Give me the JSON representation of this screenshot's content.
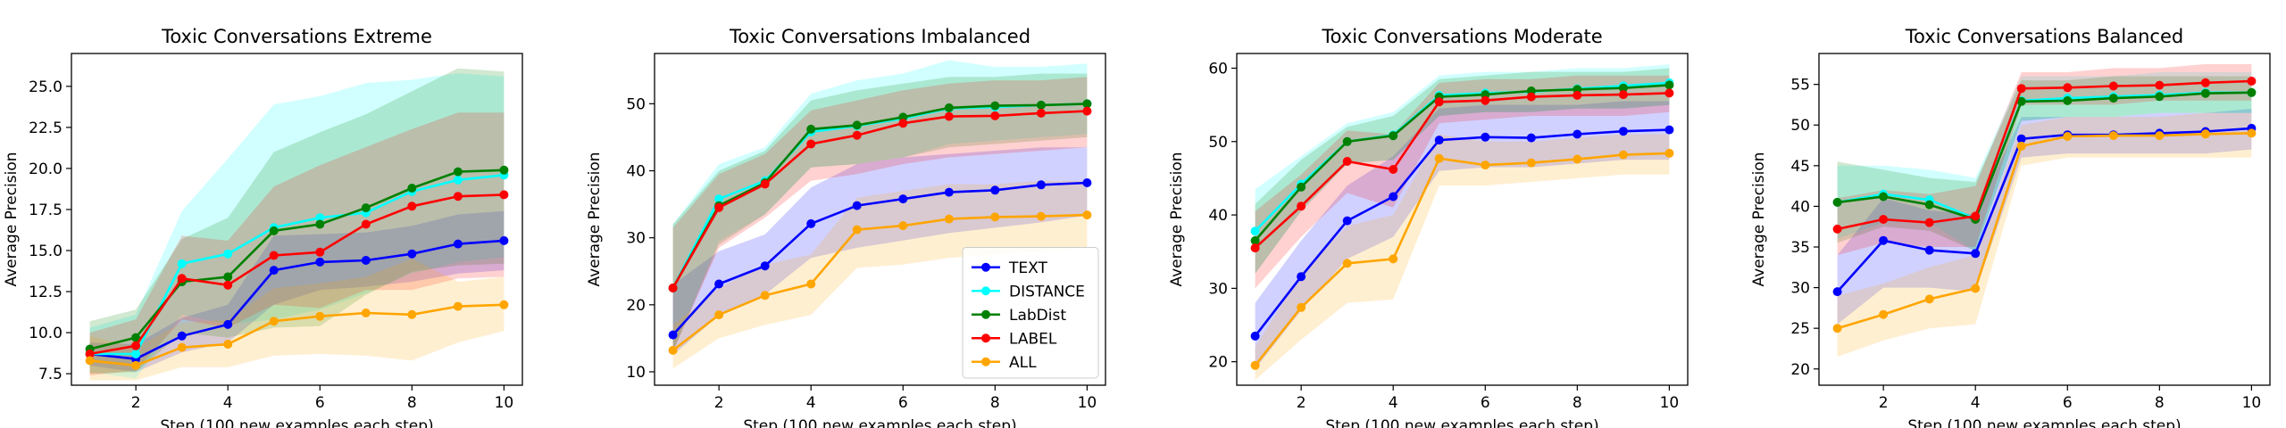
{
  "chart_data": [
    {
      "type": "line",
      "title": "Toxic Conversations Extreme",
      "xlabel": "Step (100 new examples each step)",
      "ylabel": "Average Precision",
      "xlim": [
        0.6,
        10.4
      ],
      "ylim": [
        6.8,
        27.0
      ],
      "xticks": [
        2,
        4,
        6,
        8,
        10
      ],
      "yticks": [
        7.5,
        10.0,
        12.5,
        15.0,
        17.5,
        20.0,
        22.5,
        25.0
      ],
      "ytick_labels": [
        "7.5",
        "10.0",
        "12.5",
        "15.0",
        "17.5",
        "20.0",
        "22.5",
        "25.0"
      ],
      "x": [
        1,
        2,
        3,
        4,
        5,
        6,
        7,
        8,
        9,
        10
      ],
      "series": [
        {
          "name": "TEXT",
          "color": "#0000ff",
          "values": [
            8.7,
            8.4,
            9.8,
            10.5,
            13.8,
            14.3,
            14.4,
            14.8,
            15.4,
            15.6
          ],
          "lower": [
            8.0,
            7.6,
            8.8,
            9.4,
            11.7,
            12.6,
            12.8,
            13.1,
            13.6,
            13.8
          ],
          "upper": [
            9.4,
            9.3,
            10.9,
            11.7,
            15.9,
            16.0,
            16.1,
            16.5,
            17.2,
            17.4
          ]
        },
        {
          "name": "DISTANCE",
          "color": "#00ffff",
          "values": [
            8.7,
            8.7,
            14.2,
            14.8,
            16.4,
            17.0,
            17.3,
            18.6,
            19.3,
            19.6
          ],
          "lower": [
            7.6,
            7.2,
            11.1,
            10.5,
            10.8,
            11.4,
            12.4,
            13.6,
            14.3,
            14.6
          ],
          "upper": [
            10.3,
            11.1,
            17.4,
            20.6,
            23.9,
            24.4,
            25.2,
            25.4,
            25.8,
            25.6
          ]
        },
        {
          "name": "LabDist",
          "color": "#008000",
          "values": [
            9.0,
            9.7,
            13.1,
            13.4,
            16.2,
            16.6,
            17.6,
            18.8,
            19.8,
            19.9
          ],
          "lower": [
            7.5,
            7.6,
            10.0,
            9.7,
            10.3,
            10.4,
            12.3,
            13.7,
            14.1,
            14.2
          ],
          "upper": [
            10.7,
            11.4,
            15.7,
            17.0,
            21.0,
            22.2,
            23.3,
            24.7,
            26.1,
            25.9
          ]
        },
        {
          "name": "LABEL",
          "color": "#ff0000",
          "values": [
            8.7,
            9.2,
            13.3,
            12.9,
            14.7,
            14.9,
            16.6,
            17.7,
            18.3,
            18.4
          ],
          "lower": [
            7.4,
            7.7,
            10.8,
            10.3,
            11.7,
            11.5,
            12.6,
            12.6,
            13.3,
            13.4
          ],
          "upper": [
            10.0,
            10.8,
            15.9,
            15.6,
            18.9,
            20.2,
            21.3,
            22.4,
            23.4,
            23.4
          ]
        },
        {
          "name": "ALL",
          "color": "#ffa500",
          "values": [
            8.3,
            8.0,
            9.1,
            9.3,
            10.7,
            11.0,
            11.2,
            11.1,
            11.6,
            11.7
          ],
          "lower": [
            7.1,
            7.1,
            7.9,
            7.9,
            8.6,
            8.7,
            8.6,
            8.3,
            9.4,
            10.1
          ],
          "upper": [
            9.8,
            9.1,
            10.6,
            10.8,
            12.7,
            13.0,
            13.4,
            14.5,
            13.1,
            13.4
          ]
        }
      ]
    },
    {
      "type": "line",
      "title": "Toxic Conversations Imbalanced",
      "xlabel": "Step (100 new examples each step)",
      "ylabel": "Average Precision",
      "xlim": [
        0.6,
        10.4
      ],
      "ylim": [
        8.0,
        57.5
      ],
      "xticks": [
        2,
        4,
        6,
        8,
        10
      ],
      "yticks": [
        10,
        20,
        30,
        40,
        50
      ],
      "ytick_labels": [
        "10",
        "20",
        "30",
        "40",
        "50"
      ],
      "x": [
        1,
        2,
        3,
        4,
        5,
        6,
        7,
        8,
        9,
        10
      ],
      "legend": "lower-right",
      "series": [
        {
          "name": "TEXT",
          "color": "#0000ff",
          "values": [
            15.5,
            23.1,
            25.8,
            32.1,
            34.8,
            35.8,
            36.8,
            37.1,
            37.9,
            38.2
          ],
          "lower": [
            12.5,
            18.4,
            21.5,
            27.0,
            28.5,
            29.6,
            30.7,
            31.5,
            32.3,
            33.3
          ],
          "upper": [
            23.0,
            28.0,
            30.5,
            37.5,
            41.0,
            42.0,
            42.5,
            43.0,
            43.5,
            43.5
          ]
        },
        {
          "name": "DISTANCE",
          "color": "#00ffff",
          "values": [
            22.5,
            35.8,
            38.5,
            45.8,
            46.7,
            47.8,
            49.3,
            49.5,
            49.8,
            50.0
          ],
          "lower": [
            13.0,
            29.5,
            33.5,
            40.5,
            41.0,
            42.0,
            44.0,
            44.5,
            45.0,
            45.5
          ],
          "upper": [
            32.0,
            41.0,
            43.5,
            51.5,
            53.5,
            54.5,
            56.5,
            55.5,
            55.5,
            56.0
          ]
        },
        {
          "name": "LabDist",
          "color": "#008000",
          "values": [
            22.5,
            34.8,
            38.2,
            46.2,
            46.8,
            48.0,
            49.4,
            49.7,
            49.8,
            50.0
          ],
          "lower": [
            13.0,
            29.0,
            33.5,
            40.5,
            41.0,
            42.0,
            43.5,
            44.0,
            44.5,
            45.0
          ],
          "upper": [
            32.0,
            40.0,
            43.0,
            50.5,
            52.0,
            53.0,
            54.0,
            54.0,
            54.5,
            54.5
          ]
        },
        {
          "name": "LABEL",
          "color": "#ff0000",
          "values": [
            22.5,
            34.5,
            38.0,
            44.0,
            45.3,
            47.1,
            48.1,
            48.2,
            48.6,
            48.9
          ],
          "lower": [
            13.0,
            28.5,
            33.0,
            38.5,
            39.5,
            41.0,
            42.0,
            42.5,
            43.0,
            43.5
          ],
          "upper": [
            31.5,
            39.5,
            42.5,
            49.0,
            50.5,
            52.0,
            53.0,
            53.5,
            53.5,
            54.0
          ]
        },
        {
          "name": "ALL",
          "color": "#ffa500",
          "values": [
            13.2,
            18.5,
            21.4,
            23.1,
            31.2,
            31.8,
            32.8,
            33.1,
            33.2,
            33.4
          ],
          "lower": [
            10.5,
            15.0,
            17.0,
            18.5,
            25.5,
            26.0,
            27.0,
            27.5,
            28.0,
            28.5
          ],
          "upper": [
            17.0,
            22.5,
            26.0,
            27.5,
            36.0,
            37.0,
            38.0,
            38.0,
            38.5,
            38.5
          ]
        }
      ]
    },
    {
      "type": "line",
      "title": "Toxic Conversations Moderate",
      "xlabel": "Step (100 new examples each step)",
      "ylabel": "Average Precision",
      "xlim": [
        0.6,
        10.4
      ],
      "ylim": [
        16.8,
        62.0
      ],
      "xticks": [
        2,
        4,
        6,
        8,
        10
      ],
      "yticks": [
        20,
        30,
        40,
        50,
        60
      ],
      "ytick_labels": [
        "20",
        "30",
        "40",
        "50",
        "60"
      ],
      "x": [
        1,
        2,
        3,
        4,
        5,
        6,
        7,
        8,
        9,
        10
      ],
      "series": [
        {
          "name": "TEXT",
          "color": "#0000ff",
          "values": [
            23.5,
            31.6,
            39.2,
            42.5,
            50.2,
            50.6,
            50.5,
            51.0,
            51.4,
            51.6
          ],
          "lower": [
            19.0,
            27.0,
            34.0,
            37.0,
            46.0,
            46.5,
            46.5,
            47.0,
            47.5,
            47.5
          ],
          "upper": [
            28.0,
            36.5,
            44.0,
            48.0,
            54.5,
            55.0,
            55.0,
            55.0,
            55.5,
            55.5
          ]
        },
        {
          "name": "DISTANCE",
          "color": "#00ffff",
          "values": [
            37.8,
            44.2,
            50.0,
            50.9,
            56.3,
            56.6,
            56.8,
            57.2,
            57.6,
            58.0
          ],
          "lower": [
            32.0,
            40.5,
            47.0,
            47.5,
            53.5,
            54.0,
            54.0,
            54.5,
            54.5,
            55.0
          ],
          "upper": [
            43.5,
            48.0,
            52.5,
            54.0,
            59.0,
            59.5,
            59.5,
            60.0,
            60.0,
            60.5
          ]
        },
        {
          "name": "LabDist",
          "color": "#008000",
          "values": [
            36.5,
            43.8,
            50.0,
            50.8,
            56.1,
            56.4,
            56.9,
            57.1,
            57.3,
            57.7
          ],
          "lower": [
            32.0,
            40.5,
            47.0,
            47.5,
            53.5,
            54.0,
            54.0,
            54.5,
            54.5,
            55.0
          ],
          "upper": [
            41.5,
            47.5,
            52.0,
            53.5,
            58.5,
            59.0,
            59.5,
            59.5,
            59.5,
            60.0
          ]
        },
        {
          "name": "LABEL",
          "color": "#ff0000",
          "values": [
            35.5,
            41.2,
            47.3,
            46.2,
            55.4,
            55.6,
            56.1,
            56.3,
            56.4,
            56.6
          ],
          "lower": [
            30.0,
            37.0,
            43.0,
            41.0,
            52.5,
            53.0,
            53.5,
            53.5,
            53.5,
            54.0
          ],
          "upper": [
            40.5,
            45.5,
            51.5,
            51.0,
            58.0,
            58.5,
            58.5,
            59.0,
            59.0,
            59.0
          ]
        },
        {
          "name": "ALL",
          "color": "#ffa500",
          "values": [
            19.5,
            27.4,
            33.4,
            34.0,
            47.7,
            46.8,
            47.1,
            47.6,
            48.2,
            48.4
          ],
          "lower": [
            17.5,
            23.0,
            28.0,
            28.5,
            44.0,
            44.0,
            44.5,
            45.0,
            45.5,
            45.5
          ],
          "upper": [
            22.0,
            32.0,
            38.5,
            40.0,
            51.0,
            50.0,
            50.0,
            50.5,
            51.0,
            51.0
          ]
        }
      ]
    },
    {
      "type": "line",
      "title": "Toxic Conversations Balanced",
      "xlabel": "Step (100 new examples each step)",
      "ylabel": "Average Precision",
      "xlim": [
        0.6,
        10.4
      ],
      "ylim": [
        18.0,
        58.8
      ],
      "xticks": [
        2,
        4,
        6,
        8,
        10
      ],
      "yticks": [
        20,
        25,
        30,
        35,
        40,
        45,
        50,
        55
      ],
      "ytick_labels": [
        "20",
        "25",
        "30",
        "35",
        "40",
        "45",
        "50",
        "55"
      ],
      "x": [
        1,
        2,
        3,
        4,
        5,
        6,
        7,
        8,
        9,
        10
      ],
      "series": [
        {
          "name": "TEXT",
          "color": "#0000ff",
          "values": [
            29.5,
            35.8,
            34.6,
            34.2,
            48.3,
            48.8,
            48.8,
            49.0,
            49.2,
            49.6
          ],
          "lower": [
            25.5,
            30.0,
            30.0,
            29.5,
            46.0,
            46.5,
            46.5,
            46.5,
            46.5,
            47.0
          ],
          "upper": [
            34.0,
            41.0,
            39.5,
            39.0,
            51.0,
            51.0,
            51.0,
            51.5,
            51.5,
            52.0
          ]
        },
        {
          "name": "DISTANCE",
          "color": "#00ffff",
          "values": [
            40.5,
            41.5,
            40.8,
            38.5,
            53.0,
            53.3,
            53.5,
            53.7,
            54.0,
            54.0
          ],
          "lower": [
            36.0,
            38.0,
            38.0,
            34.5,
            50.5,
            51.0,
            51.0,
            51.5,
            51.5,
            51.5
          ],
          "upper": [
            45.0,
            45.0,
            44.5,
            43.5,
            56.0,
            56.0,
            56.0,
            56.5,
            56.5,
            56.5
          ]
        },
        {
          "name": "LabDist",
          "color": "#008000",
          "values": [
            40.5,
            41.2,
            40.2,
            38.4,
            52.9,
            53.0,
            53.3,
            53.5,
            53.9,
            54.0
          ],
          "lower": [
            35.5,
            37.5,
            37.0,
            34.5,
            50.5,
            51.0,
            51.0,
            51.5,
            51.5,
            51.5
          ],
          "upper": [
            45.5,
            44.5,
            43.5,
            43.0,
            55.5,
            55.5,
            56.0,
            56.0,
            56.0,
            56.0
          ]
        },
        {
          "name": "LABEL",
          "color": "#ff0000",
          "values": [
            37.2,
            38.4,
            38.0,
            38.8,
            54.5,
            54.6,
            54.8,
            54.9,
            55.2,
            55.4
          ],
          "lower": [
            34.0,
            35.5,
            35.0,
            35.0,
            52.5,
            52.5,
            52.5,
            53.0,
            53.0,
            53.0
          ],
          "upper": [
            41.0,
            42.0,
            41.5,
            42.5,
            56.5,
            56.5,
            57.0,
            57.0,
            57.5,
            57.5
          ]
        },
        {
          "name": "ALL",
          "color": "#ffa500",
          "values": [
            25.0,
            26.7,
            28.6,
            29.9,
            47.4,
            48.6,
            48.7,
            48.7,
            48.9,
            49.0
          ],
          "lower": [
            21.5,
            23.5,
            25.0,
            25.5,
            45.0,
            46.0,
            46.0,
            46.0,
            46.0,
            46.0
          ],
          "upper": [
            29.0,
            30.5,
            32.5,
            34.0,
            50.0,
            51.0,
            51.0,
            51.0,
            51.5,
            51.5
          ]
        }
      ]
    }
  ]
}
